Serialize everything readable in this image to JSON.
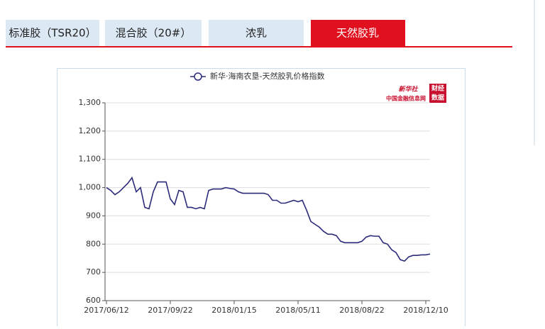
{
  "tabs": [
    "标准胶（TSR20）",
    "混合胶（20#）",
    "浓乳",
    "天然胶乳"
  ],
  "logo": {
    "brand": "新华社",
    "site": "中国金融信息网",
    "badge_top": "财经",
    "badge_bottom": "数据"
  },
  "chart_data": {
    "type": "line",
    "x": [
      "2017/06/12",
      null,
      null,
      null,
      null,
      null,
      null,
      null,
      null,
      null,
      null,
      null,
      null,
      null,
      null,
      "2017/09/22",
      null,
      null,
      null,
      null,
      null,
      null,
      null,
      null,
      null,
      null,
      null,
      null,
      null,
      null,
      "2018/01/15",
      null,
      null,
      null,
      null,
      null,
      null,
      null,
      null,
      null,
      null,
      null,
      null,
      null,
      null,
      "2018/05/11",
      null,
      null,
      null,
      null,
      null,
      null,
      null,
      null,
      null,
      null,
      null,
      null,
      null,
      null,
      "2018/08/22",
      null,
      null,
      null,
      null,
      null,
      null,
      null,
      null,
      null,
      null,
      null,
      null,
      null,
      null,
      "2018/12/10",
      null
    ],
    "series": [
      {
        "name": "新华·海南农垦-天然胶乳价格指数",
        "color": "#2b2b7a",
        "values": [
          1000,
          990,
          975,
          985,
          1000,
          1015,
          1035,
          985,
          1000,
          930,
          925,
          985,
          1020,
          1020,
          1020,
          960,
          940,
          990,
          985,
          930,
          930,
          925,
          930,
          925,
          990,
          995,
          995,
          995,
          1000,
          997,
          995,
          985,
          980,
          980,
          980,
          980,
          980,
          980,
          975,
          955,
          955,
          945,
          945,
          950,
          955,
          950,
          955,
          920,
          880,
          870,
          860,
          845,
          835,
          835,
          830,
          810,
          805,
          805,
          805,
          805,
          810,
          825,
          830,
          828,
          828,
          805,
          800,
          780,
          770,
          745,
          740,
          755,
          760,
          760,
          762,
          762,
          765
        ]
      }
    ],
    "ylim": [
      600,
      1300
    ],
    "yticks": [
      600,
      700,
      800,
      900,
      {
        "value": 1000,
        "label": "1,000"
      },
      {
        "value": 1100,
        "label": "1,100"
      },
      {
        "value": 1200,
        "label": "1,200"
      },
      {
        "value": 1300,
        "label": "1,300"
      }
    ],
    "grid": true
  }
}
